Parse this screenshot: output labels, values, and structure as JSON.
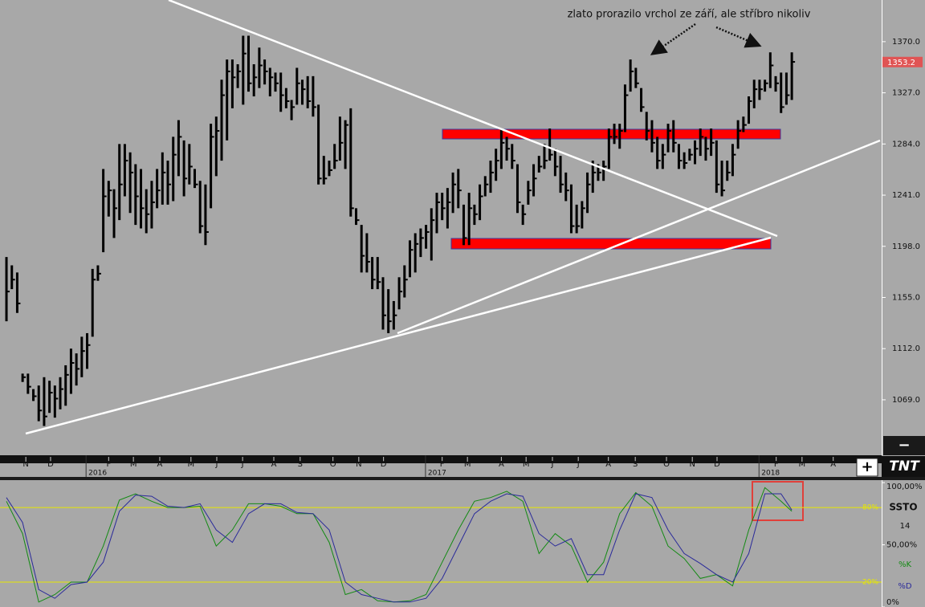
{
  "chart_data": [
    {
      "type": "ohlc",
      "annotation": "zlato prorazilo vrchol ze září, ale stříbro nikoliv",
      "color": "#000000",
      "high": [
        1189,
        1182,
        1176,
        1091,
        1091,
        1078,
        1081,
        1088,
        1085,
        1081,
        1088,
        1098,
        1112,
        1108,
        1122,
        1125,
        1179,
        1182,
        1263,
        1253,
        1246,
        1284,
        1284,
        1277,
        1267,
        1263,
        1246,
        1253,
        1263,
        1277,
        1270,
        1290,
        1304,
        1287,
        1284,
        1263,
        1253,
        1250,
        1301,
        1307,
        1338,
        1355,
        1355,
        1351,
        1375,
        1375,
        1351,
        1365,
        1355,
        1348,
        1344,
        1344,
        1331,
        1321,
        1348,
        1338,
        1341,
        1341,
        1317,
        1274,
        1270,
        1284,
        1307,
        1304,
        1314,
        1230,
        1216,
        1209,
        1189,
        1189,
        1172,
        1162,
        1152,
        1172,
        1182,
        1203,
        1209,
        1213,
        1216,
        1230,
        1243,
        1243,
        1247,
        1260,
        1263,
        1233,
        1243,
        1233,
        1250,
        1257,
        1270,
        1280,
        1297,
        1290,
        1284,
        1267,
        1233,
        1253,
        1267,
        1274,
        1284,
        1297,
        1280,
        1274,
        1260,
        1250,
        1233,
        1236,
        1260,
        1270,
        1267,
        1270,
        1297,
        1301,
        1301,
        1334,
        1355,
        1348,
        1331,
        1311,
        1304,
        1290,
        1284,
        1301,
        1304,
        1284,
        1277,
        1280,
        1287,
        1297,
        1290,
        1297,
        1287,
        1270,
        1270,
        1284,
        1304,
        1307,
        1324,
        1338,
        1338,
        1338,
        1361,
        1341,
        1344,
        1344,
        1361
      ],
      "low": [
        1135,
        1162,
        1142,
        1084,
        1074,
        1068,
        1051,
        1047,
        1058,
        1054,
        1061,
        1064,
        1074,
        1081,
        1088,
        1095,
        1122,
        1169,
        1193,
        1223,
        1205,
        1220,
        1240,
        1226,
        1216,
        1213,
        1209,
        1213,
        1230,
        1233,
        1233,
        1236,
        1257,
        1240,
        1250,
        1247,
        1209,
        1199,
        1230,
        1257,
        1270,
        1287,
        1314,
        1331,
        1317,
        1328,
        1324,
        1331,
        1334,
        1324,
        1328,
        1311,
        1314,
        1304,
        1317,
        1317,
        1314,
        1307,
        1250,
        1250,
        1257,
        1263,
        1270,
        1263,
        1223,
        1216,
        1176,
        1176,
        1162,
        1162,
        1128,
        1125,
        1128,
        1145,
        1155,
        1172,
        1176,
        1189,
        1196,
        1186,
        1209,
        1220,
        1213,
        1226,
        1230,
        1199,
        1199,
        1216,
        1220,
        1240,
        1243,
        1253,
        1263,
        1270,
        1263,
        1226,
        1216,
        1233,
        1240,
        1260,
        1263,
        1270,
        1257,
        1243,
        1236,
        1209,
        1209,
        1213,
        1226,
        1243,
        1253,
        1253,
        1263,
        1284,
        1280,
        1294,
        1328,
        1331,
        1311,
        1287,
        1277,
        1263,
        1263,
        1277,
        1277,
        1263,
        1263,
        1270,
        1267,
        1274,
        1270,
        1274,
        1243,
        1240,
        1253,
        1257,
        1280,
        1294,
        1301,
        1314,
        1321,
        1328,
        1331,
        1328,
        1310,
        1317,
        1321
      ],
      "close": [
        1160,
        1170,
        1150,
        1088,
        1080,
        1072,
        1060,
        1055,
        1075,
        1070,
        1078,
        1090,
        1100,
        1095,
        1110,
        1115,
        1170,
        1175,
        1240,
        1245,
        1230,
        1250,
        1270,
        1260,
        1240,
        1230,
        1225,
        1235,
        1245,
        1260,
        1250,
        1275,
        1290,
        1255,
        1265,
        1250,
        1215,
        1210,
        1290,
        1295,
        1325,
        1345,
        1340,
        1345,
        1360,
        1335,
        1340,
        1350,
        1345,
        1340,
        1335,
        1325,
        1320,
        1315,
        1335,
        1330,
        1320,
        1315,
        1255,
        1255,
        1262,
        1270,
        1285,
        1300,
        1230,
        1220,
        1190,
        1185,
        1170,
        1168,
        1140,
        1135,
        1140,
        1160,
        1170,
        1195,
        1200,
        1205,
        1210,
        1220,
        1235,
        1230,
        1235,
        1250,
        1245,
        1205,
        1230,
        1225,
        1240,
        1250,
        1260,
        1270,
        1285,
        1280,
        1270,
        1235,
        1225,
        1245,
        1255,
        1265,
        1270,
        1275,
        1265,
        1250,
        1245,
        1215,
        1215,
        1230,
        1250,
        1260,
        1260,
        1265,
        1290,
        1290,
        1295,
        1325,
        1345,
        1335,
        1315,
        1295,
        1285,
        1270,
        1275,
        1295,
        1285,
        1270,
        1268,
        1275,
        1280,
        1290,
        1280,
        1285,
        1250,
        1245,
        1260,
        1275,
        1295,
        1300,
        1320,
        1330,
        1330,
        1335,
        1350,
        1335,
        1315,
        1325,
        1353
      ],
      "last_price": 1353.2,
      "xlim": [
        -1.2,
        162.7
      ],
      "ylim": [
        1022.4,
        1405
      ],
      "yticks": [
        {
          "value": 1069,
          "label": "1069.0"
        },
        {
          "value": 1112,
          "label": "1112.0"
        },
        {
          "value": 1155,
          "label": "1155.0"
        },
        {
          "value": 1198,
          "label": "1198.0"
        },
        {
          "value": 1241,
          "label": "1241.0"
        },
        {
          "value": 1284,
          "label": "1284.0"
        },
        {
          "value": 1327,
          "label": "1327.0"
        },
        {
          "value": 1370,
          "label": "1370.0"
        }
      ],
      "xticks": [
        {
          "value": 3.6,
          "label": "N"
        },
        {
          "value": 8.2,
          "label": "D"
        },
        {
          "value": 19.0,
          "label": "F"
        },
        {
          "value": 23.6,
          "label": "M"
        },
        {
          "value": 28.5,
          "label": "A"
        },
        {
          "value": 34.3,
          "label": "M"
        },
        {
          "value": 39.1,
          "label": "J"
        },
        {
          "value": 43.9,
          "label": "J"
        },
        {
          "value": 49.7,
          "label": "A"
        },
        {
          "value": 54.6,
          "label": "S"
        },
        {
          "value": 60.7,
          "label": "O"
        },
        {
          "value": 65.5,
          "label": "N"
        },
        {
          "value": 70.1,
          "label": "D"
        },
        {
          "value": 81.0,
          "label": "F"
        },
        {
          "value": 85.7,
          "label": "M"
        },
        {
          "value": 92.0,
          "label": "A"
        },
        {
          "value": 96.6,
          "label": "M"
        },
        {
          "value": 101.5,
          "label": "J"
        },
        {
          "value": 106.3,
          "label": "J"
        },
        {
          "value": 111.9,
          "label": "A"
        },
        {
          "value": 116.9,
          "label": "S"
        },
        {
          "value": 122.7,
          "label": "O"
        },
        {
          "value": 127.5,
          "label": "N"
        },
        {
          "value": 132.1,
          "label": "D"
        },
        {
          "value": 143.1,
          "label": "F"
        },
        {
          "value": 147.9,
          "label": "M"
        },
        {
          "value": 153.7,
          "label": "A"
        }
      ],
      "year_ticks": [
        {
          "value": 14.8,
          "label": "2016"
        },
        {
          "value": 77.9,
          "label": "2017"
        },
        {
          "value": 139.9,
          "label": "2018"
        }
      ]
    },
    {
      "type": "stochastic",
      "title": "SSTO",
      "period": 14,
      "x": [
        0,
        3,
        6,
        9,
        12,
        15,
        18,
        21,
        24,
        27,
        30,
        33,
        36,
        39,
        42,
        45,
        48,
        51,
        54,
        57,
        60,
        63,
        66,
        69,
        72,
        75,
        78,
        81,
        84,
        87,
        90,
        93,
        96,
        99,
        102,
        105,
        108,
        111,
        114,
        117,
        120,
        123,
        126,
        129,
        132,
        135,
        138,
        141,
        144,
        146
      ],
      "series": [
        {
          "name": "%K",
          "color": "#138a13",
          "values": [
            85,
            59,
            4,
            10,
            20,
            20,
            49,
            86,
            91,
            85,
            80,
            80,
            81,
            49,
            62,
            83,
            83,
            81,
            75,
            75,
            52,
            10,
            14,
            5,
            4,
            5,
            10,
            36,
            62,
            85,
            88,
            93,
            85,
            43,
            59,
            49,
            20,
            36,
            75,
            92,
            81,
            49,
            39,
            23,
            26,
            17,
            62,
            96,
            85,
            77
          ]
        },
        {
          "name": "%D",
          "color": "#2a2a9a",
          "values": [
            88,
            68,
            14,
            7,
            18,
            20,
            36,
            77,
            90,
            89,
            81,
            80,
            83,
            62,
            52,
            75,
            83,
            83,
            76,
            75,
            62,
            20,
            10,
            7,
            4,
            4,
            7,
            23,
            49,
            75,
            85,
            91,
            89,
            59,
            49,
            55,
            26,
            26,
            62,
            91,
            88,
            62,
            43,
            35,
            26,
            20,
            43,
            91,
            91,
            78
          ]
        }
      ],
      "xlim": [
        -1.2,
        162.7
      ],
      "ylim": [
        0,
        102
      ],
      "yticks": [
        {
          "value": 100,
          "label": "100,00%"
        },
        {
          "value": 50,
          "label": "50,00%"
        },
        {
          "value": 0,
          "label": "0%"
        }
      ],
      "levels": [
        {
          "value": 80,
          "label": "80%"
        },
        {
          "value": 20,
          "label": "20%"
        }
      ]
    }
  ],
  "ui": {
    "zoom_out": "−",
    "zoom_in": "+",
    "logo": "TNT"
  }
}
